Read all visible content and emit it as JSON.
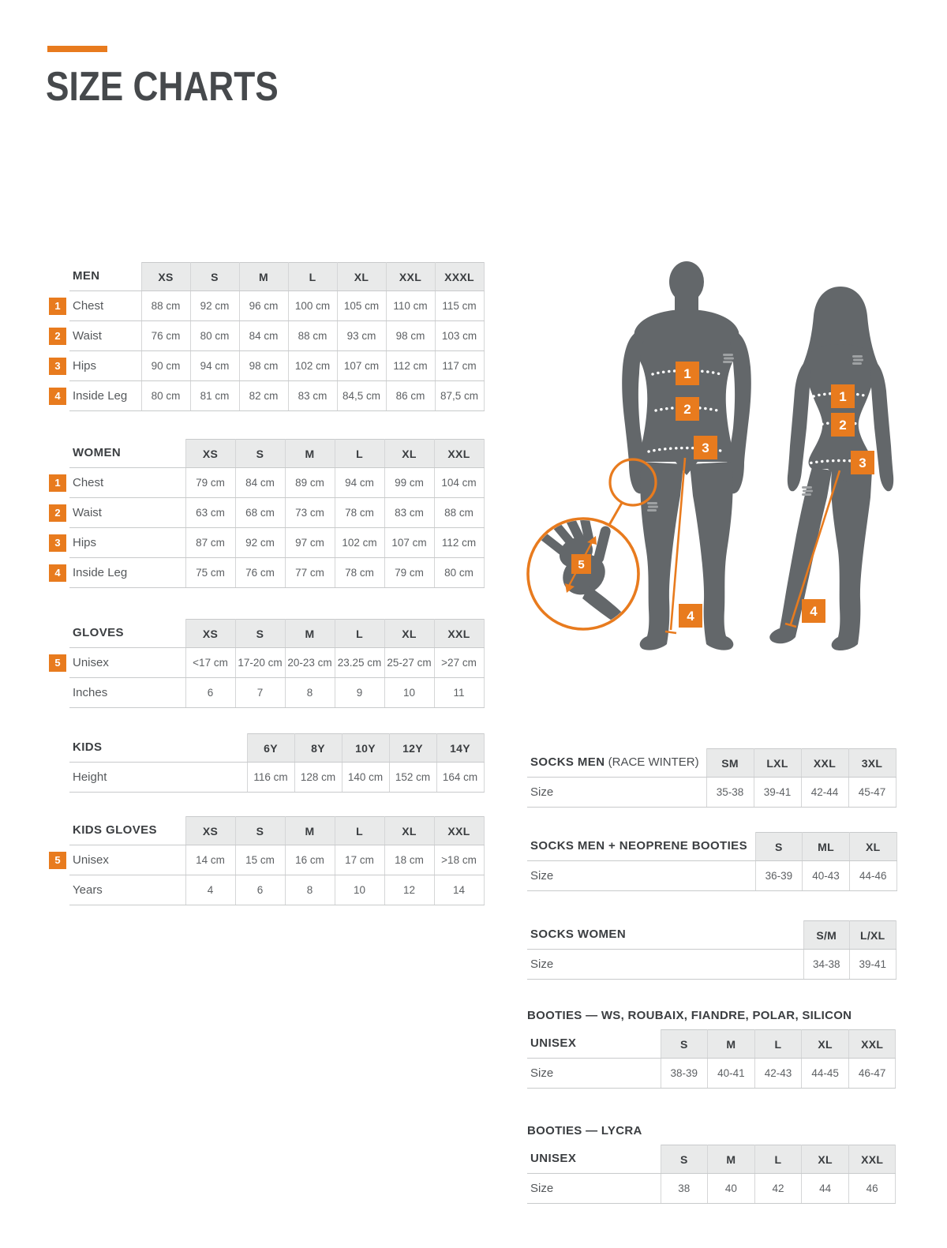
{
  "header": {
    "title": "SIZE CHARTS"
  },
  "colors": {
    "accent": "#E87B1E",
    "silhouette": "#63676A",
    "heading": "#46494C",
    "header_cell_bg": "#E9EAEA"
  },
  "tables": {
    "men": {
      "name": "MEN",
      "columns": [
        "XS",
        "S",
        "M",
        "L",
        "XL",
        "XXL",
        "XXXL"
      ],
      "rows": [
        {
          "badge": "1",
          "label": "Chest",
          "values": [
            "88 cm",
            "92 cm",
            "96 cm",
            "100 cm",
            "105 cm",
            "110 cm",
            "115 cm"
          ]
        },
        {
          "badge": "2",
          "label": "Waist",
          "values": [
            "76 cm",
            "80 cm",
            "84 cm",
            "88 cm",
            "93 cm",
            "98 cm",
            "103 cm"
          ]
        },
        {
          "badge": "3",
          "label": "Hips",
          "values": [
            "90 cm",
            "94 cm",
            "98 cm",
            "102 cm",
            "107 cm",
            "112 cm",
            "117 cm"
          ]
        },
        {
          "badge": "4",
          "label": "Inside Leg",
          "values": [
            "80 cm",
            "81 cm",
            "82 cm",
            "83 cm",
            "84,5 cm",
            "86 cm",
            "87,5 cm"
          ]
        }
      ]
    },
    "women": {
      "name": "WOMEN",
      "columns": [
        "XS",
        "S",
        "M",
        "L",
        "XL",
        "XXL"
      ],
      "rows": [
        {
          "badge": "1",
          "label": "Chest",
          "values": [
            "79 cm",
            "84 cm",
            "89 cm",
            "94 cm",
            "99 cm",
            "104 cm"
          ]
        },
        {
          "badge": "2",
          "label": "Waist",
          "values": [
            "63 cm",
            "68 cm",
            "73 cm",
            "78 cm",
            "83 cm",
            "88 cm"
          ]
        },
        {
          "badge": "3",
          "label": "Hips",
          "values": [
            "87 cm",
            "92 cm",
            "97 cm",
            "102 cm",
            "107 cm",
            "112 cm"
          ]
        },
        {
          "badge": "4",
          "label": "Inside Leg",
          "values": [
            "75 cm",
            "76 cm",
            "77 cm",
            "78 cm",
            "79 cm",
            "80 cm"
          ]
        }
      ]
    },
    "gloves": {
      "name": "GLOVES",
      "columns": [
        "XS",
        "S",
        "M",
        "L",
        "XL",
        "XXL"
      ],
      "rows": [
        {
          "badge": "5",
          "label": "Unisex",
          "values": [
            "<17 cm",
            "17-20 cm",
            "20-23 cm",
            "23.25 cm",
            "25-27 cm",
            ">27 cm"
          ]
        },
        {
          "label": "Inches",
          "values": [
            "6",
            "7",
            "8",
            "9",
            "10",
            "11"
          ]
        }
      ]
    },
    "kids": {
      "name": "KIDS",
      "columns": [
        "6Y",
        "8Y",
        "10Y",
        "12Y",
        "14Y"
      ],
      "rows": [
        {
          "label": "Height",
          "values": [
            "116 cm",
            "128 cm",
            "140 cm",
            "152 cm",
            "164 cm"
          ]
        }
      ]
    },
    "kids_gloves": {
      "name": "KIDS GLOVES",
      "columns": [
        "XS",
        "S",
        "M",
        "L",
        "XL",
        "XXL"
      ],
      "rows": [
        {
          "badge": "5",
          "label": "Unisex",
          "values": [
            "14 cm",
            "15 cm",
            "16 cm",
            "17 cm",
            "18 cm",
            ">18 cm"
          ]
        },
        {
          "label": "Years",
          "values": [
            "4",
            "6",
            "8",
            "10",
            "12",
            "14"
          ]
        }
      ]
    },
    "socks_men": {
      "name": "SOCKS MEN",
      "name_note": "(RACE WINTER)",
      "columns": [
        "SM",
        "LXL",
        "XXL",
        "3XL"
      ],
      "rows": [
        {
          "label": "Size",
          "values": [
            "35-38",
            "39-41",
            "42-44",
            "45-47"
          ]
        }
      ]
    },
    "socks_men_neoprene": {
      "name": "SOCKS MEN + NEOPRENE BOOTIES",
      "columns": [
        "S",
        "ML",
        "XL"
      ],
      "rows": [
        {
          "label": "Size",
          "values": [
            "36-39",
            "40-43",
            "44-46"
          ]
        }
      ]
    },
    "socks_women": {
      "name": "SOCKS WOMEN",
      "columns": [
        "S/M",
        "L/XL"
      ],
      "rows": [
        {
          "label": "Size",
          "values": [
            "34-38",
            "39-41"
          ]
        }
      ]
    },
    "booties_main": {
      "title": "BOOTIES — WS, ROUBAIX, FIANDRE, POLAR, SILICON",
      "name": "UNISEX",
      "columns": [
        "S",
        "M",
        "L",
        "XL",
        "XXL"
      ],
      "rows": [
        {
          "label": "Size",
          "values": [
            "38-39",
            "40-41",
            "42-43",
            "44-45",
            "46-47"
          ]
        }
      ]
    },
    "booties_lycra": {
      "title": "BOOTIES — LYCRA",
      "name": "UNISEX",
      "columns": [
        "S",
        "M",
        "L",
        "XL",
        "XXL"
      ],
      "rows": [
        {
          "label": "Size",
          "values": [
            "38",
            "40",
            "42",
            "44",
            "46"
          ]
        }
      ]
    }
  },
  "figure": {
    "markers": {
      "chest": "1",
      "waist": "2",
      "hips": "3",
      "inside_leg": "4",
      "hand": "5"
    }
  }
}
